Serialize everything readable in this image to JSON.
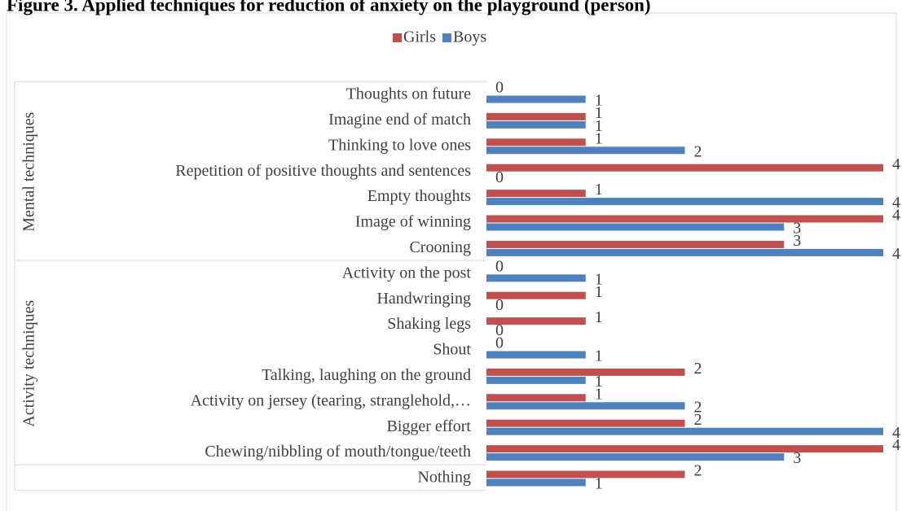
{
  "chart_data": {
    "type": "bar",
    "orientation": "horizontal",
    "title": "Figure 3. Applied techniques for reduction of anxiety on the playground (person)",
    "groups": [
      {
        "name": "Mental techniques",
        "categories": [
          "Thoughts on future",
          "Imagine end of match",
          "Thinking to love ones",
          "Repetition of positive thoughts and sentences",
          "Empty thoughts",
          "Image of winning",
          "Crooning"
        ]
      },
      {
        "name": "Activity techniques",
        "categories": [
          "Activity on the post",
          "Handwringing",
          "Shaking legs",
          "Shout",
          "Talking, laughing on the ground",
          "Activity on jersey (tearing, stranglehold,…",
          "Bigger effort",
          "Chewing/nibbling of mouth/tongue/teeth"
        ]
      },
      {
        "name": null,
        "categories": [
          "Nothing"
        ]
      }
    ],
    "series": [
      {
        "name": "Girls",
        "color": "#c0504d",
        "values": [
          0,
          1,
          1,
          4,
          1,
          4,
          3,
          0,
          1,
          1,
          0,
          2,
          1,
          2,
          4,
          2
        ]
      },
      {
        "name": "Boys",
        "color": "#4f81bd",
        "values": [
          1,
          1,
          2,
          0,
          4,
          3,
          4,
          1,
          0,
          0,
          1,
          1,
          2,
          4,
          3,
          1
        ]
      }
    ],
    "xlim": [
      0,
      4
    ],
    "legend": "top"
  }
}
